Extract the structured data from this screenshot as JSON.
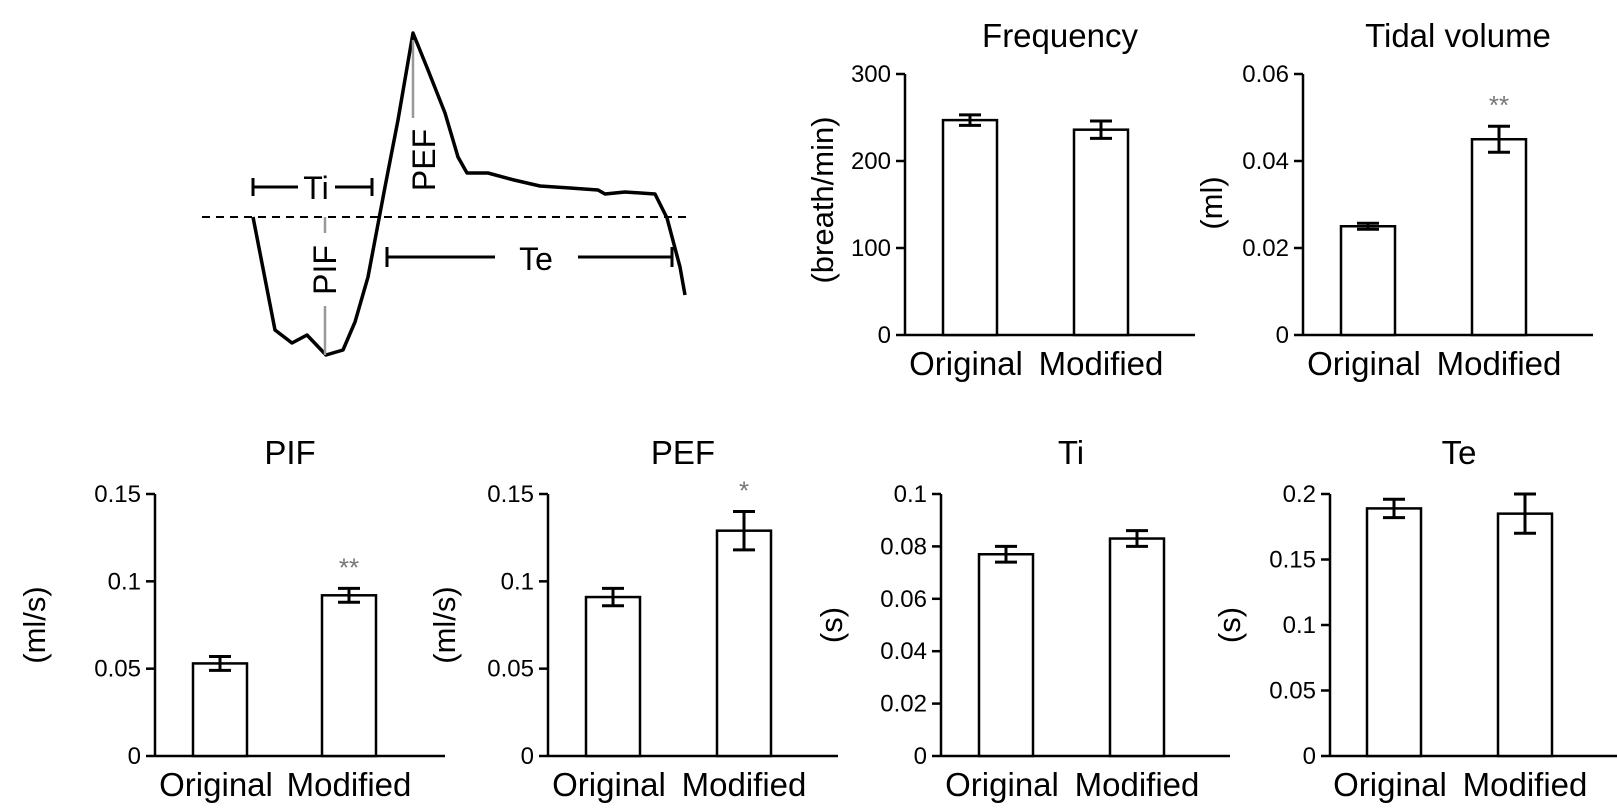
{
  "diagram": {
    "labels": {
      "ti": "Ti",
      "te": "Te",
      "pif": "PIF",
      "pef": "PEF"
    }
  },
  "chart_data": [
    {
      "id": "frequency",
      "type": "bar",
      "title": "Frequency",
      "ylabel": "(breath/min)",
      "categories": [
        "Original",
        "Modified"
      ],
      "values": [
        247,
        236
      ],
      "errors": [
        6,
        10
      ],
      "ylim": [
        0,
        300
      ],
      "yticks": [
        0,
        100,
        200,
        300
      ],
      "ytick_labels": [
        "0",
        "100",
        "200",
        "300"
      ],
      "significance": [
        "",
        ""
      ]
    },
    {
      "id": "tidal-volume",
      "type": "bar",
      "title": "Tidal volume",
      "ylabel": "(ml)",
      "categories": [
        "Original",
        "Modified"
      ],
      "values": [
        0.025,
        0.045
      ],
      "errors": [
        0.0007,
        0.003
      ],
      "ylim": [
        0,
        0.06
      ],
      "yticks": [
        0,
        0.02,
        0.04,
        0.06
      ],
      "ytick_labels": [
        "0",
        "0.02",
        "0.04",
        "0.06"
      ],
      "significance": [
        "",
        "**"
      ]
    },
    {
      "id": "pif",
      "type": "bar",
      "title": "PIF",
      "ylabel": "(ml/s)",
      "categories": [
        "Original",
        "Modified"
      ],
      "values": [
        0.053,
        0.092
      ],
      "errors": [
        0.004,
        0.004
      ],
      "ylim": [
        0,
        0.15
      ],
      "yticks": [
        0,
        0.05,
        0.1,
        0.15
      ],
      "ytick_labels": [
        "0",
        "0.05",
        "0.1",
        "0.15"
      ],
      "significance": [
        "",
        "**"
      ]
    },
    {
      "id": "pef",
      "type": "bar",
      "title": "PEF",
      "ylabel": "(ml/s)",
      "categories": [
        "Original",
        "Modified"
      ],
      "values": [
        0.091,
        0.129
      ],
      "errors": [
        0.005,
        0.011
      ],
      "ylim": [
        0,
        0.15
      ],
      "yticks": [
        0,
        0.05,
        0.1,
        0.15
      ],
      "ytick_labels": [
        "0",
        "0.05",
        "0.1",
        "0.15"
      ],
      "significance": [
        "",
        "*"
      ]
    },
    {
      "id": "ti",
      "type": "bar",
      "title": "Ti",
      "ylabel": "(s)",
      "categories": [
        "Original",
        "Modified"
      ],
      "values": [
        0.077,
        0.083
      ],
      "errors": [
        0.003,
        0.003
      ],
      "ylim": [
        0,
        0.1
      ],
      "yticks": [
        0,
        0.02,
        0.04,
        0.06,
        0.08,
        0.1
      ],
      "ytick_labels": [
        "0",
        "0.02",
        "0.04",
        "0.06",
        "0.08",
        "0.1"
      ],
      "significance": [
        "",
        ""
      ]
    },
    {
      "id": "te",
      "type": "bar",
      "title": "Te",
      "ylabel": "(s)",
      "categories": [
        "Original",
        "Modified"
      ],
      "values": [
        0.189,
        0.185
      ],
      "errors": [
        0.007,
        0.015
      ],
      "ylim": [
        0,
        0.2
      ],
      "yticks": [
        0,
        0.05,
        0.1,
        0.15,
        0.2
      ],
      "ytick_labels": [
        "0",
        "0.05",
        "0.1",
        "0.15",
        "0.2"
      ],
      "significance": [
        "",
        ""
      ]
    }
  ]
}
